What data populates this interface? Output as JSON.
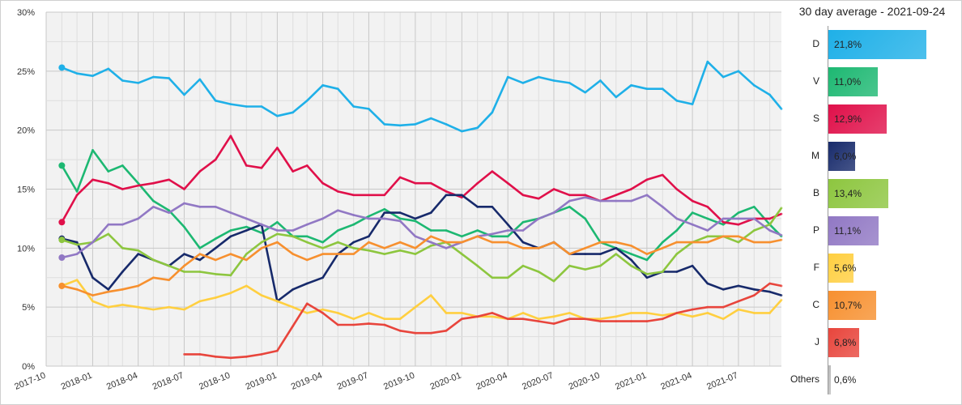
{
  "chart_data": [
    {
      "type": "line",
      "title": "",
      "xlabel": "",
      "ylabel": "",
      "ylim": [
        0,
        30
      ],
      "y_ticks": [
        "0%",
        "5%",
        "10%",
        "15%",
        "20%",
        "25%",
        "30%"
      ],
      "x_ticks": [
        "2017-10",
        "2018-01",
        "2018-04",
        "2018-07",
        "2018-10",
        "2019-01",
        "2019-04",
        "2019-07",
        "2019-10",
        "2020-01",
        "2020-04",
        "2020-07",
        "2020-10",
        "2021-01",
        "2021-04",
        "2021-07"
      ],
      "xlim": [
        "2017-10-01",
        "2021-09-24"
      ],
      "grid": true,
      "x": [
        "2017-11-01",
        "2017-12-01",
        "2018-01-01",
        "2018-02-01",
        "2018-03-01",
        "2018-04-01",
        "2018-05-01",
        "2018-06-01",
        "2018-07-01",
        "2018-08-01",
        "2018-09-01",
        "2018-10-01",
        "2018-11-01",
        "2018-12-01",
        "2019-01-01",
        "2019-02-01",
        "2019-03-01",
        "2019-04-01",
        "2019-05-01",
        "2019-06-01",
        "2019-07-01",
        "2019-08-01",
        "2019-09-01",
        "2019-10-01",
        "2019-11-01",
        "2019-12-01",
        "2020-01-01",
        "2020-02-01",
        "2020-03-01",
        "2020-04-01",
        "2020-05-01",
        "2020-06-01",
        "2020-07-01",
        "2020-08-01",
        "2020-09-01",
        "2020-10-01",
        "2020-11-01",
        "2020-12-01",
        "2021-01-01",
        "2021-02-01",
        "2021-03-01",
        "2021-04-01",
        "2021-05-01",
        "2021-06-01",
        "2021-07-01",
        "2021-08-01",
        "2021-09-01",
        "2021-09-24"
      ],
      "series": [
        {
          "key": "D",
          "color": "#1fb0e8",
          "values": [
            25.3,
            24.8,
            24.6,
            25.2,
            24.2,
            24.0,
            24.5,
            24.4,
            23.0,
            24.3,
            22.5,
            22.2,
            22.0,
            22.0,
            21.2,
            21.5,
            22.5,
            23.8,
            23.5,
            22.0,
            21.8,
            20.5,
            20.4,
            20.5,
            21.0,
            20.5,
            19.9,
            20.2,
            21.5,
            24.5,
            24.0,
            24.5,
            24.2,
            24.0,
            23.2,
            24.2,
            22.8,
            23.8,
            23.5,
            23.5,
            22.5,
            22.2,
            25.8,
            24.5,
            25.0,
            23.8,
            23.0,
            21.8
          ]
        },
        {
          "key": "V",
          "color": "#1db872",
          "values": [
            17.0,
            14.8,
            18.3,
            16.5,
            17.0,
            15.5,
            14.0,
            13.2,
            11.8,
            10.0,
            10.8,
            11.5,
            11.8,
            11.3,
            12.2,
            11.0,
            11.0,
            10.5,
            11.5,
            12.0,
            12.7,
            13.3,
            12.5,
            12.3,
            11.5,
            11.5,
            11.0,
            11.5,
            11.0,
            11.0,
            12.2,
            12.5,
            13.0,
            13.5,
            12.5,
            10.5,
            10.0,
            9.5,
            9.0,
            10.5,
            11.5,
            13.0,
            12.5,
            12.0,
            13.0,
            13.5,
            12.0,
            11.0
          ]
        },
        {
          "key": "S",
          "color": "#e0104a",
          "values": [
            12.2,
            14.5,
            15.8,
            15.5,
            15.0,
            15.3,
            15.5,
            15.8,
            15.0,
            16.5,
            17.5,
            19.5,
            17.0,
            16.8,
            18.5,
            16.5,
            17.0,
            15.5,
            14.8,
            14.5,
            14.5,
            14.5,
            16.0,
            15.5,
            15.5,
            14.8,
            14.3,
            15.5,
            16.5,
            15.5,
            14.5,
            14.2,
            15.0,
            14.5,
            14.5,
            14.0,
            14.5,
            15.0,
            15.8,
            16.2,
            15.0,
            14.0,
            13.5,
            12.2,
            12.0,
            12.5,
            12.5,
            12.9
          ]
        },
        {
          "key": "M",
          "color": "#172a6b",
          "values": [
            10.8,
            10.5,
            7.5,
            6.5,
            8.0,
            9.5,
            9.0,
            8.5,
            9.5,
            9.0,
            10.0,
            11.0,
            11.5,
            12.0,
            5.5,
            6.5,
            7.0,
            7.5,
            9.5,
            10.5,
            11.0,
            13.0,
            13.0,
            12.5,
            13.0,
            14.5,
            14.5,
            13.5,
            13.5,
            12.0,
            10.5,
            10.0,
            10.5,
            9.5,
            9.5,
            9.5,
            10.0,
            9.0,
            7.5,
            8.0,
            8.0,
            8.5,
            7.0,
            6.5,
            6.8,
            6.5,
            6.3,
            6.0
          ]
        },
        {
          "key": "B",
          "color": "#8dc63f",
          "values": [
            10.7,
            10.3,
            10.5,
            11.2,
            10.0,
            9.8,
            9.0,
            8.5,
            8.0,
            8.0,
            7.8,
            7.7,
            9.5,
            10.5,
            11.2,
            11.0,
            10.5,
            10.0,
            10.5,
            10.0,
            9.8,
            9.5,
            9.8,
            9.5,
            10.2,
            10.5,
            9.5,
            8.5,
            7.5,
            7.5,
            8.5,
            8.0,
            7.2,
            8.5,
            8.2,
            8.5,
            9.5,
            8.5,
            7.8,
            8.0,
            9.5,
            10.5,
            11.0,
            11.0,
            10.5,
            11.5,
            12.0,
            13.4
          ]
        },
        {
          "key": "P",
          "color": "#9178c4",
          "values": [
            9.2,
            9.5,
            10.5,
            12.0,
            12.0,
            12.5,
            13.5,
            13.0,
            13.8,
            13.5,
            13.5,
            13.0,
            12.5,
            12.0,
            11.5,
            11.5,
            12.0,
            12.5,
            13.2,
            12.8,
            12.5,
            12.5,
            12.3,
            11.0,
            10.5,
            10.0,
            10.5,
            11.0,
            11.2,
            11.5,
            11.5,
            12.5,
            13.0,
            14.0,
            14.3,
            14.0,
            14.0,
            14.0,
            14.5,
            13.5,
            12.5,
            12.0,
            11.5,
            12.5,
            12.5,
            12.5,
            11.5,
            11.1
          ]
        },
        {
          "key": "F",
          "color": "#ffcf40",
          "values": [
            6.8,
            7.3,
            5.5,
            5.0,
            5.2,
            5.0,
            4.8,
            5.0,
            4.8,
            5.5,
            5.8,
            6.2,
            6.8,
            6.0,
            5.5,
            5.0,
            4.5,
            4.8,
            4.5,
            4.0,
            4.5,
            4.0,
            4.0,
            5.0,
            6.0,
            4.5,
            4.5,
            4.2,
            4.2,
            4.0,
            4.5,
            4.0,
            4.2,
            4.5,
            4.0,
            4.0,
            4.2,
            4.5,
            4.5,
            4.3,
            4.5,
            4.2,
            4.5,
            4.0,
            4.8,
            4.5,
            4.5,
            5.6
          ]
        },
        {
          "key": "C",
          "color": "#f7902f",
          "values": [
            6.8,
            6.5,
            6.0,
            6.3,
            6.5,
            6.8,
            7.5,
            7.3,
            8.5,
            9.5,
            9.0,
            9.5,
            9.0,
            10.0,
            10.5,
            9.5,
            9.0,
            9.5,
            9.5,
            9.5,
            10.5,
            10.0,
            10.5,
            10.0,
            11.0,
            10.5,
            10.5,
            11.0,
            10.5,
            10.5,
            10.0,
            10.0,
            10.5,
            9.5,
            10.0,
            10.5,
            10.5,
            10.2,
            9.5,
            10.0,
            10.5,
            10.5,
            10.5,
            11.0,
            11.0,
            10.5,
            10.5,
            10.7
          ]
        },
        {
          "key": "J",
          "color": "#e8453c",
          "values": [
            null,
            null,
            null,
            null,
            null,
            null,
            null,
            null,
            1.0,
            1.0,
            0.8,
            0.7,
            0.8,
            1.0,
            1.3,
            3.4,
            5.3,
            4.5,
            3.5,
            3.5,
            3.6,
            3.5,
            3.0,
            2.8,
            2.8,
            3.0,
            4.0,
            4.2,
            4.5,
            4.0,
            4.0,
            3.8,
            3.6,
            4.0,
            4.0,
            3.8,
            3.8,
            3.8,
            3.8,
            4.0,
            4.5,
            4.8,
            5.0,
            5.0,
            5.5,
            6.0,
            7.0,
            6.8
          ]
        }
      ]
    },
    {
      "type": "bar",
      "orientation": "horizontal",
      "title": "30 day average - 2021-09-24",
      "categories": [
        "D",
        "V",
        "S",
        "M",
        "B",
        "P",
        "F",
        "C",
        "J",
        "Others"
      ],
      "values": [
        21.8,
        11.0,
        12.9,
        6.0,
        13.4,
        11.1,
        5.6,
        10.7,
        6.8,
        0.6
      ],
      "labels": [
        "21,8%",
        "11,0%",
        "12,9%",
        "6,0%",
        "13,4%",
        "11,1%",
        "5,6%",
        "10,7%",
        "6,8%",
        "0,6%"
      ],
      "colors": [
        "#1fb0e8",
        "#1db872",
        "#e0104a",
        "#172a6b",
        "#8dc63f",
        "#9178c4",
        "#ffcf40",
        "#f7902f",
        "#e8453c",
        "#bbbbbb"
      ]
    }
  ]
}
